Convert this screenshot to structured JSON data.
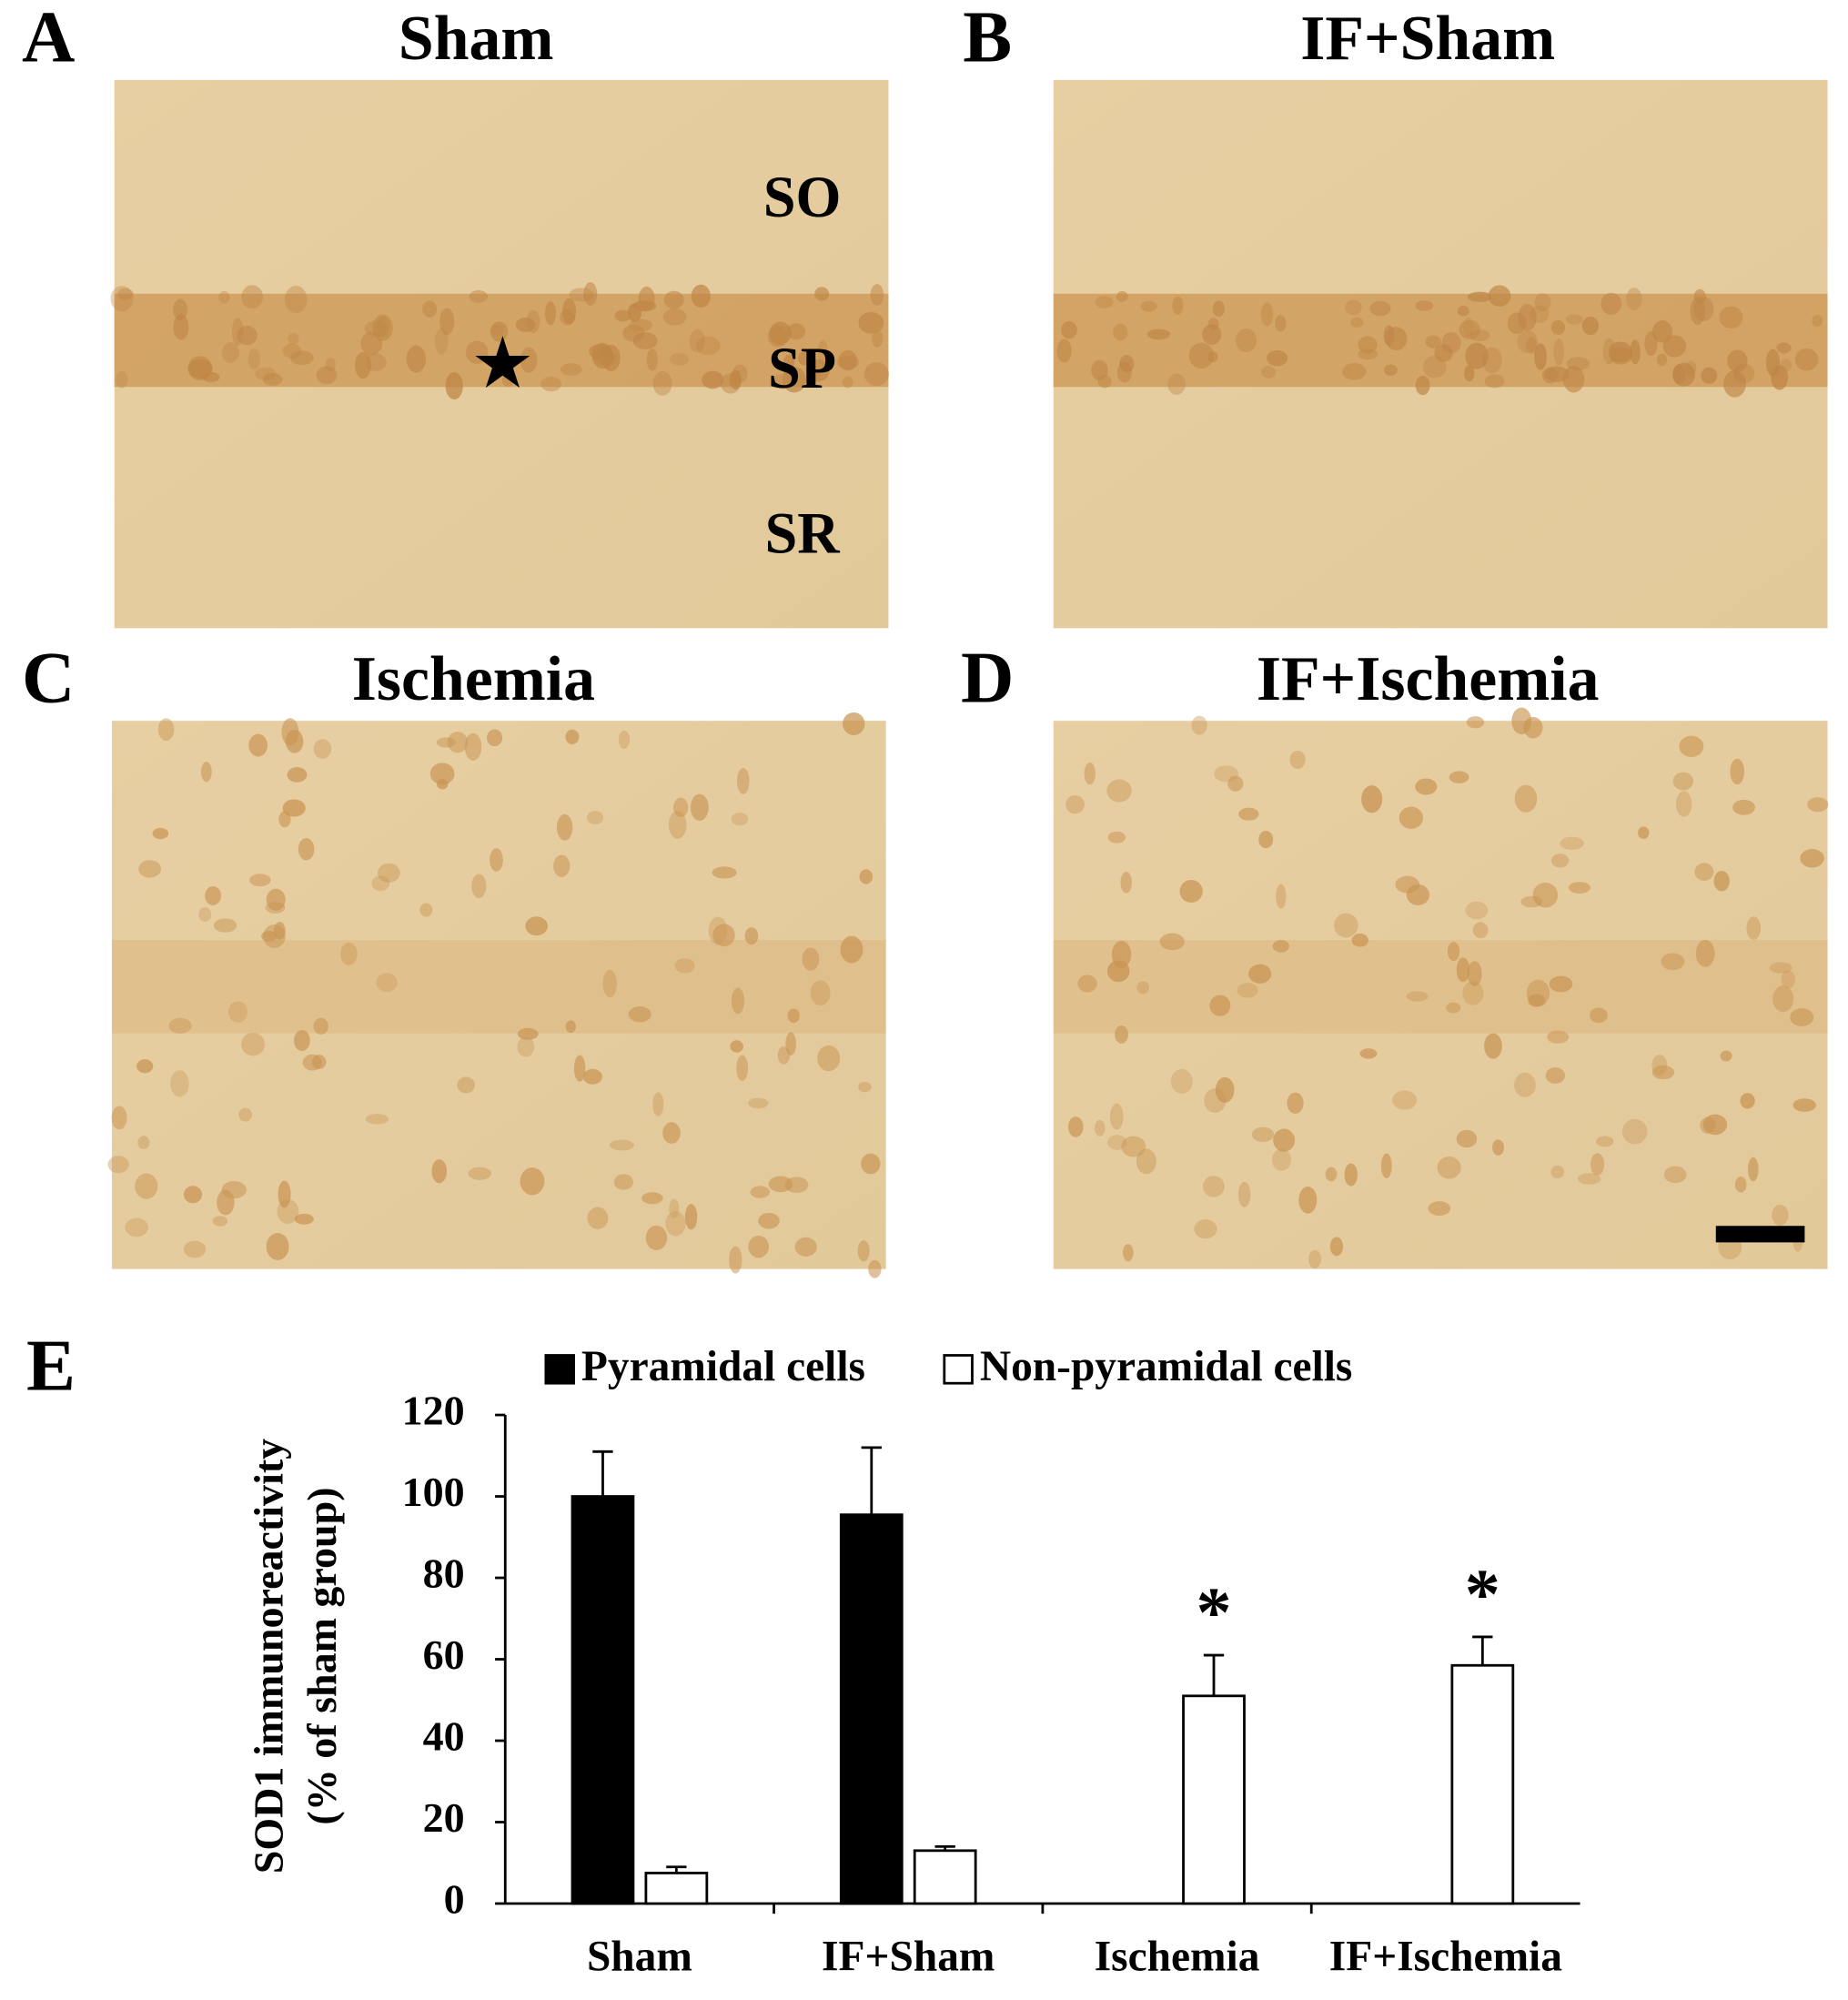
{
  "panels": [
    {
      "letter": "A",
      "title": "Sham",
      "layers": [
        "SO",
        "SP",
        "SR"
      ]
    },
    {
      "letter": "B",
      "title": "IF+Sham"
    },
    {
      "letter": "C",
      "title": "Ischemia"
    },
    {
      "letter": "D",
      "title": "IF+Ischemia"
    }
  ],
  "chart_letter": "E",
  "chart_data": {
    "type": "bar",
    "ylabel": [
      "SOD1 immunoreactivity",
      "(% of sham group)"
    ],
    "categories": [
      "Sham",
      "IF+Sham",
      "Ischemia",
      "IF+Ischemia"
    ],
    "series": [
      {
        "name": "Pyramidal cells",
        "color": "#000000",
        "values": [
          100,
          95.5,
          null,
          null
        ],
        "errors": [
          11,
          16.5,
          null,
          null
        ]
      },
      {
        "name": "Non-pyramidal cells",
        "color": "#ffffff",
        "values": [
          7.5,
          13,
          51,
          58.5
        ],
        "errors": [
          1.5,
          1,
          10,
          7
        ],
        "significance": [
          null,
          null,
          "*",
          "*"
        ]
      }
    ],
    "ylim": [
      0,
      120
    ],
    "yticks": [
      0,
      20,
      40,
      60,
      80,
      100,
      120
    ]
  }
}
